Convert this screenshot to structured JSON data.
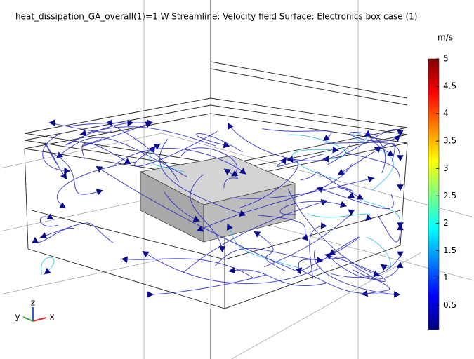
{
  "title": "heat_dissipation_GA_overall(1)=1 W   Streamline: Velocity field  Surface: Electronics box case (1)",
  "colorbar": {
    "unit": "m/s",
    "lim": [
      0.06,
      5
    ],
    "ticks": [
      0.5,
      1,
      1.5,
      2,
      2.5,
      3,
      3.5,
      4,
      4.5,
      5
    ],
    "colormap": [
      "#00007f",
      "#0000ff",
      "#0080ff",
      "#00ffff",
      "#80ff80",
      "#ffff00",
      "#ff8000",
      "#ff0000",
      "#7f0000"
    ]
  },
  "axes_triad": {
    "z": "z",
    "y": "y",
    "x": "x"
  }
}
